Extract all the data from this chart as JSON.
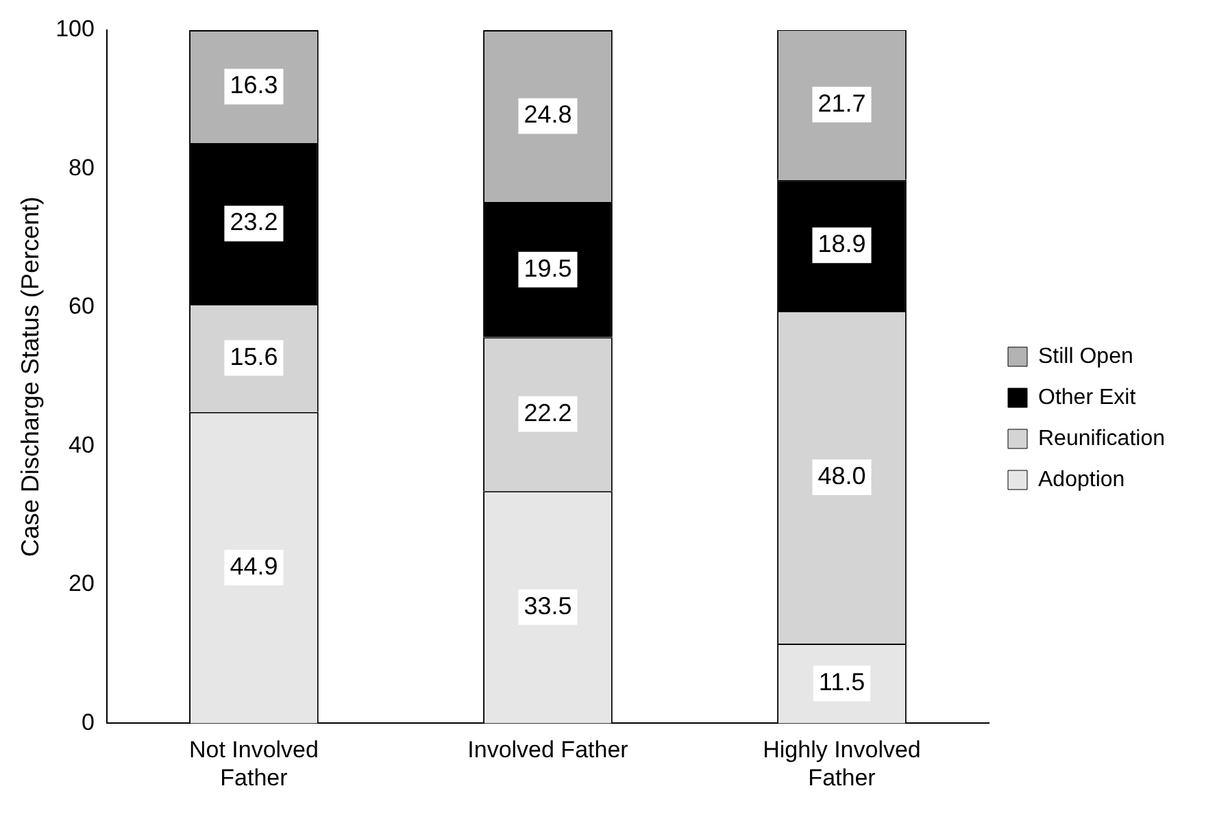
{
  "chart_data": {
    "type": "bar",
    "stacked": true,
    "ylabel": "Case Discharge Status (Percent)",
    "categories": [
      "Not Involved Father",
      "Involved Father",
      "Highly Involved Father"
    ],
    "ylim": [
      0,
      100
    ],
    "yticks": [
      0,
      20,
      40,
      60,
      80,
      100
    ],
    "grid": false,
    "legend": "right",
    "series": [
      {
        "name": "Adoption",
        "color": "#e6e6e6",
        "values": [
          44.9,
          33.5,
          11.5
        ],
        "value_labels": [
          "44.9",
          "33.5",
          "11.5"
        ]
      },
      {
        "name": "Reunification",
        "color": "#d4d4d4",
        "values": [
          15.6,
          22.2,
          48.0
        ],
        "value_labels": [
          "15.6",
          "22.2",
          "48.0"
        ]
      },
      {
        "name": "Other Exit",
        "color": "#000000",
        "values": [
          23.2,
          19.5,
          18.9
        ],
        "value_labels": [
          "23.2",
          "19.5",
          "18.9"
        ]
      },
      {
        "name": "Still Open",
        "color": "#b3b3b3",
        "values": [
          16.3,
          24.8,
          21.7
        ],
        "value_labels": [
          "16.3",
          "24.8",
          "21.7"
        ]
      }
    ]
  }
}
